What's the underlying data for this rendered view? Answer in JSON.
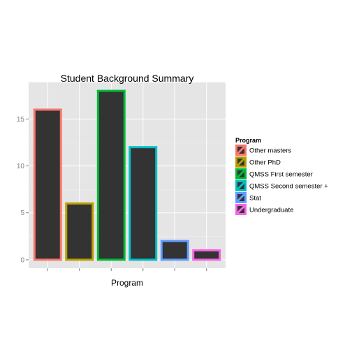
{
  "chart_data": {
    "type": "bar",
    "title": "Student Background Summary",
    "xlabel": "Program",
    "ylabel": "",
    "categories": [
      "Other masters",
      "Other PhD",
      "QMSS First semester",
      "QMSS Second semester +",
      "Stat",
      "Undergraduate"
    ],
    "values": [
      16,
      6,
      18,
      12,
      2,
      1
    ],
    "ylim": [
      -0.9,
      18.9
    ],
    "yticks": [
      0,
      5,
      10,
      15
    ],
    "ytick_labels": [
      "0",
      "5",
      "10",
      "15"
    ],
    "xtick_labels": [
      "",
      "",
      "",
      "",
      "",
      ""
    ],
    "grid": true,
    "bar_fill": "#333333",
    "panel_background": "#e5e5e5",
    "legend": {
      "title": "Program",
      "position": "right",
      "entries": [
        {
          "label": "Other masters",
          "color": "#f8766d"
        },
        {
          "label": "Other PhD",
          "color": "#b79f00"
        },
        {
          "label": "QMSS First semester",
          "color": "#00ba38"
        },
        {
          "label": "QMSS Second semester +",
          "color": "#00bfc4"
        },
        {
          "label": "Stat",
          "color": "#619cff"
        },
        {
          "label": "Undergraduate",
          "color": "#f564e3"
        }
      ]
    }
  }
}
